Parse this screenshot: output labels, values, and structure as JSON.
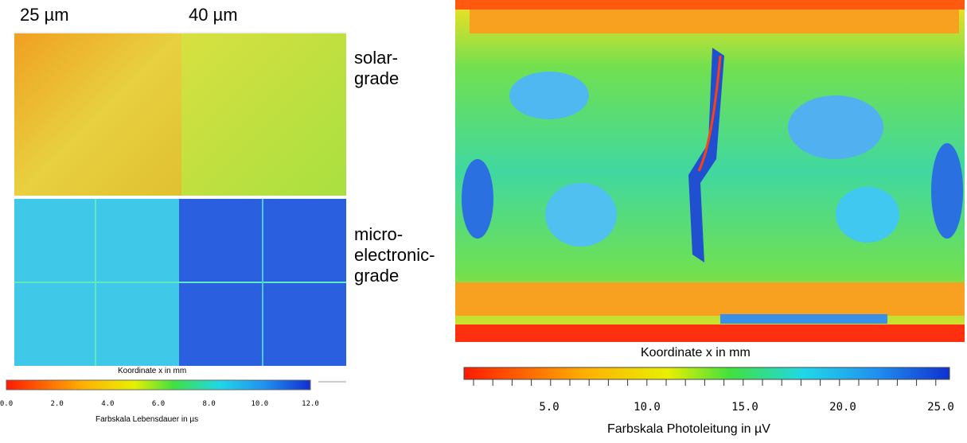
{
  "left_panel": {
    "width_labels": [
      "25 µm",
      "40 µm"
    ],
    "solar_label": [
      "solar-",
      "grade"
    ],
    "micro_label": [
      "micro-",
      "electronic-",
      "grade"
    ],
    "axis_label": "Koordinate x in mm",
    "scale_ticks": [
      "0.0",
      "2.0",
      "4.0",
      "6.0",
      "8.0",
      "10.0",
      "12.0"
    ],
    "scale_label": "Farbskala Lebensdauer in µs"
  },
  "right_panel": {
    "axis_label": "Koordinate x in mm",
    "scale_ticks": [
      "5.0",
      "10.0",
      "15.0",
      "20.0",
      "25.0"
    ],
    "scale_label": "Farbskala Photoleitung in µV"
  }
}
